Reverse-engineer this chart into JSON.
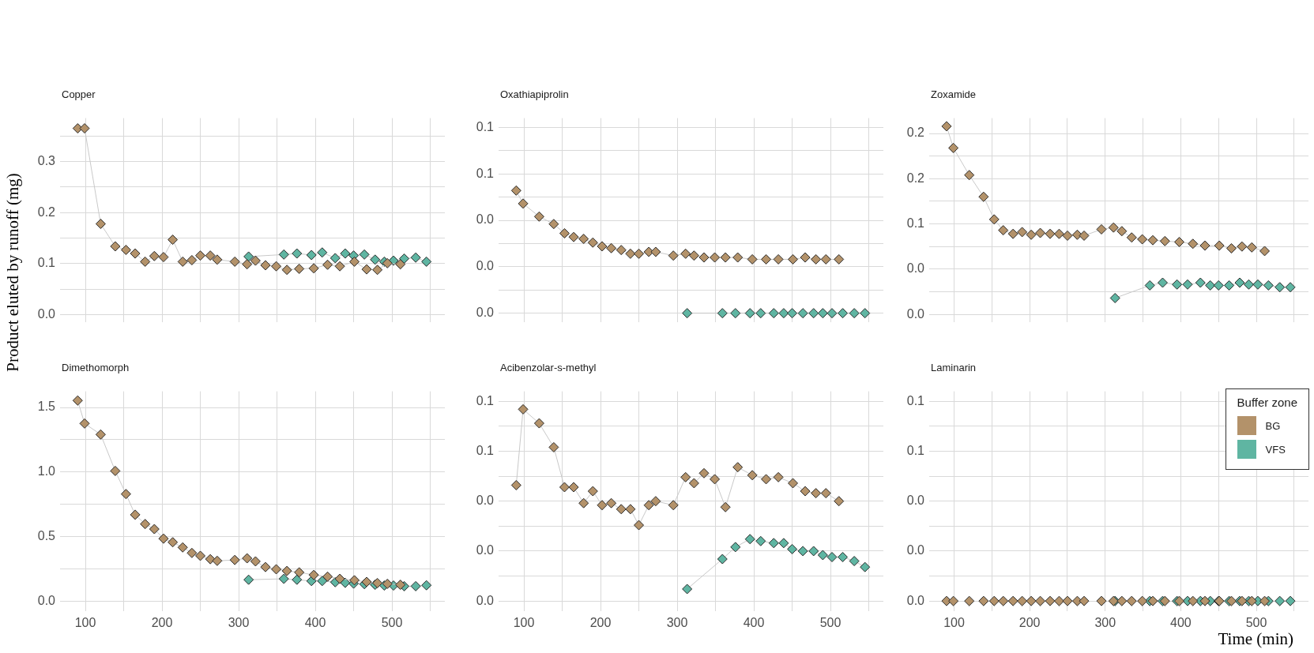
{
  "chart_data": [
    {
      "type": "line",
      "title": "Copper",
      "ylabel": "Product eluted by runoff  (mg)",
      "marker": "diamond",
      "grid": true,
      "tick_labels": "y",
      "xlim": [
        67,
        569
      ],
      "xticks": [
        100,
        {
          "value": 150,
          "label": null
        },
        200,
        {
          "value": 250,
          "label": null
        },
        300,
        {
          "value": 350,
          "label": null
        },
        400,
        {
          "value": 450,
          "label": null
        },
        500,
        {
          "value": 550,
          "label": null
        }
      ],
      "ylim": [
        -0.015,
        0.385
      ],
      "yticks": [
        {
          "value": 0,
          "label": "0.0"
        },
        {
          "value": 0.05,
          "label": null
        },
        0.1,
        {
          "value": 0.15,
          "label": null
        },
        0.2,
        {
          "value": 0.25,
          "label": null
        },
        0.3,
        {
          "value": 0.35,
          "label": null
        }
      ],
      "series": [
        {
          "color": "#b3926a",
          "x": [
            90,
            99,
            120,
            139,
            153,
            165,
            178,
            190,
            202,
            214,
            227,
            239,
            250,
            263,
            272,
            295,
            311,
            322,
            335,
            349,
            363,
            379,
            398,
            416,
            432,
            451,
            467,
            481,
            494,
            511
          ],
          "values": [
            0.365,
            0.365,
            0.178,
            0.134,
            0.127,
            0.12,
            0.104,
            0.115,
            0.113,
            0.147,
            0.104,
            0.107,
            0.116,
            0.116,
            0.108,
            0.104,
            0.099,
            0.106,
            0.097,
            0.095,
            0.088,
            0.09,
            0.091,
            0.098,
            0.095,
            0.104,
            0.089,
            0.088,
            0.101,
            0.099
          ]
        },
        {
          "color": "#5fb5a2",
          "x": [
            313,
            359,
            376,
            395,
            409,
            426,
            439,
            450,
            464,
            478,
            490,
            502,
            516,
            531,
            545
          ],
          "values": [
            0.114,
            0.118,
            0.12,
            0.117,
            0.122,
            0.111,
            0.12,
            0.116,
            0.118,
            0.108,
            0.104,
            0.106,
            0.11,
            0.112,
            0.104
          ]
        }
      ]
    },
    {
      "type": "line",
      "title": "Oxathiapiprolin",
      "marker": "diamond",
      "grid": true,
      "tick_labels": "y",
      "xlim": [
        67,
        569
      ],
      "xticks": [
        100,
        {
          "value": 150,
          "label": null
        },
        200,
        {
          "value": 250,
          "label": null
        },
        300,
        {
          "value": 350,
          "label": null
        },
        400,
        {
          "value": 450,
          "label": null
        },
        500,
        {
          "value": 550,
          "label": null
        }
      ],
      "ylim": [
        -0.005,
        0.105
      ],
      "yticks": [
        {
          "value": 0,
          "label": "0.0"
        },
        {
          "value": 0.0125,
          "label": null
        },
        {
          "value": 0.025,
          "label": "0.0"
        },
        {
          "value": 0.0375,
          "label": null
        },
        {
          "value": 0.05,
          "label": "0.0"
        },
        {
          "value": 0.0625,
          "label": null
        },
        {
          "value": 0.075,
          "label": "0.1"
        },
        {
          "value": 0.0875,
          "label": null
        },
        0.1
      ],
      "series": [
        {
          "color": "#b3926a",
          "x": [
            90,
            99,
            120,
            139,
            153,
            165,
            178,
            190,
            202,
            214,
            227,
            239,
            250,
            263,
            272,
            295,
            311,
            322,
            335,
            349,
            363,
            379,
            398,
            416,
            432,
            451,
            467,
            481,
            494,
            511
          ],
          "values": [
            0.066,
            0.059,
            0.052,
            0.048,
            0.043,
            0.041,
            0.04,
            0.038,
            0.036,
            0.035,
            0.034,
            0.032,
            0.032,
            0.033,
            0.033,
            0.031,
            0.032,
            0.031,
            0.03,
            0.03,
            0.03,
            0.03,
            0.029,
            0.029,
            0.029,
            0.029,
            0.03,
            0.029,
            0.029,
            0.029
          ]
        },
        {
          "color": "#5fb5a2",
          "x": [
            313,
            359,
            376,
            395,
            409,
            426,
            439,
            450,
            464,
            478,
            490,
            502,
            516,
            531,
            545
          ],
          "values": [
            0,
            0,
            0,
            0,
            0,
            0,
            0,
            0,
            0,
            0,
            0,
            0,
            0,
            0,
            0
          ]
        }
      ]
    },
    {
      "type": "line",
      "title": "Zoxamide",
      "marker": "diamond",
      "grid": true,
      "tick_labels": "y",
      "xlim": [
        67,
        569
      ],
      "xticks": [
        100,
        {
          "value": 150,
          "label": null
        },
        200,
        {
          "value": 250,
          "label": null
        },
        300,
        {
          "value": 350,
          "label": null
        },
        400,
        {
          "value": 450,
          "label": null
        },
        500,
        {
          "value": 550,
          "label": null
        }
      ],
      "ylim": [
        -0.009,
        0.217
      ],
      "yticks": [
        {
          "value": 0,
          "label": "0.0"
        },
        {
          "value": 0.025,
          "label": null
        },
        {
          "value": 0.05,
          "label": "0.0"
        },
        {
          "value": 0.075,
          "label": null
        },
        0.1,
        {
          "value": 0.125,
          "label": null
        },
        {
          "value": 0.15,
          "label": "0.2"
        },
        {
          "value": 0.175,
          "label": null
        },
        0.2
      ],
      "series": [
        {
          "color": "#b3926a",
          "x": [
            90,
            99,
            120,
            139,
            153,
            165,
            178,
            190,
            202,
            214,
            227,
            239,
            250,
            263,
            272,
            295,
            311,
            322,
            335,
            349,
            363,
            379,
            398,
            416,
            432,
            451,
            467,
            481,
            494,
            511
          ],
          "values": [
            0.208,
            0.184,
            0.154,
            0.13,
            0.105,
            0.093,
            0.089,
            0.091,
            0.088,
            0.09,
            0.089,
            0.089,
            0.087,
            0.088,
            0.087,
            0.094,
            0.096,
            0.092,
            0.085,
            0.083,
            0.082,
            0.081,
            0.08,
            0.078,
            0.076,
            0.076,
            0.073,
            0.075,
            0.074,
            0.07
          ]
        },
        {
          "color": "#5fb5a2",
          "x": [
            313,
            359,
            376,
            395,
            409,
            426,
            439,
            450,
            464,
            478,
            490,
            502,
            516,
            531,
            545
          ],
          "values": [
            0.018,
            0.032,
            0.035,
            0.033,
            0.033,
            0.035,
            0.032,
            0.032,
            0.032,
            0.035,
            0.033,
            0.033,
            0.032,
            0.03,
            0.03
          ]
        }
      ]
    },
    {
      "type": "line",
      "title": "Dimethomorph",
      "marker": "diamond",
      "grid": true,
      "xlim": [
        67,
        569
      ],
      "xticks": [
        100,
        {
          "value": 150,
          "label": null
        },
        200,
        {
          "value": 250,
          "label": null
        },
        300,
        {
          "value": 350,
          "label": null
        },
        400,
        {
          "value": 450,
          "label": null
        },
        500,
        {
          "value": 550,
          "label": null
        }
      ],
      "ylim": [
        -0.075,
        1.625
      ],
      "yticks": [
        {
          "value": 0,
          "label": "0.0"
        },
        {
          "value": 0.25,
          "label": null
        },
        0.5,
        {
          "value": 0.75,
          "label": null
        },
        {
          "value": 1,
          "label": "1.0"
        },
        {
          "value": 1.25,
          "label": null
        },
        1.5
      ],
      "series": [
        {
          "color": "#b3926a",
          "x": [
            90,
            99,
            120,
            139,
            153,
            165,
            178,
            190,
            202,
            214,
            227,
            239,
            250,
            263,
            272,
            295,
            311,
            322,
            335,
            349,
            363,
            379,
            398,
            416,
            432,
            451,
            467,
            481,
            494,
            511
          ],
          "values": [
            1.554,
            1.376,
            1.291,
            1.009,
            0.83,
            0.67,
            0.598,
            0.559,
            0.485,
            0.457,
            0.417,
            0.374,
            0.352,
            0.326,
            0.313,
            0.32,
            0.333,
            0.309,
            0.265,
            0.248,
            0.235,
            0.224,
            0.204,
            0.191,
            0.174,
            0.163,
            0.15,
            0.141,
            0.135,
            0.128
          ]
        },
        {
          "color": "#5fb5a2",
          "x": [
            313,
            359,
            376,
            395,
            409,
            426,
            439,
            450,
            464,
            478,
            490,
            502,
            516,
            531,
            545
          ],
          "values": [
            0.167,
            0.174,
            0.167,
            0.157,
            0.157,
            0.148,
            0.143,
            0.137,
            0.133,
            0.128,
            0.122,
            0.122,
            0.117,
            0.117,
            0.124
          ]
        }
      ]
    },
    {
      "type": "line",
      "title": "Acibenzolar-s-methyl",
      "marker": "diamond",
      "grid": true,
      "xlim": [
        67,
        569
      ],
      "xticks": [
        100,
        {
          "value": 150,
          "label": null
        },
        200,
        {
          "value": 250,
          "label": null
        },
        300,
        {
          "value": 350,
          "label": null
        },
        400,
        {
          "value": 450,
          "label": null
        },
        500,
        {
          "value": 550,
          "label": null
        }
      ],
      "ylim": [
        -0.005,
        0.105
      ],
      "yticks": [
        {
          "value": 0,
          "label": "0.0"
        },
        {
          "value": 0.0125,
          "label": null
        },
        {
          "value": 0.025,
          "label": "0.0"
        },
        {
          "value": 0.0375,
          "label": null
        },
        {
          "value": 0.05,
          "label": "0.0"
        },
        {
          "value": 0.0625,
          "label": null
        },
        {
          "value": 0.075,
          "label": "0.1"
        },
        {
          "value": 0.0875,
          "label": null
        },
        0.1
      ],
      "series": [
        {
          "color": "#b3926a",
          "x": [
            90,
            99,
            120,
            139,
            153,
            165,
            178,
            190,
            202,
            214,
            227,
            239,
            250,
            263,
            272,
            295,
            311,
            322,
            335,
            349,
            363,
            379,
            398,
            416,
            432,
            451,
            467,
            481,
            494,
            511
          ],
          "values": [
            0.058,
            0.096,
            0.089,
            0.077,
            0.057,
            0.057,
            0.049,
            0.055,
            0.048,
            0.049,
            0.046,
            0.046,
            0.038,
            0.048,
            0.05,
            0.048,
            0.062,
            0.059,
            0.064,
            0.061,
            0.047,
            0.067,
            0.063,
            0.061,
            0.062,
            0.059,
            0.055,
            0.054,
            0.054,
            0.05
          ]
        },
        {
          "color": "#5fb5a2",
          "x": [
            313,
            359,
            376,
            395,
            409,
            426,
            439,
            450,
            464,
            478,
            490,
            502,
            516,
            531,
            545
          ],
          "values": [
            0.006,
            0.021,
            0.027,
            0.031,
            0.03,
            0.029,
            0.029,
            0.026,
            0.025,
            0.025,
            0.023,
            0.022,
            0.022,
            0.02,
            0.017
          ]
        }
      ]
    },
    {
      "type": "line",
      "title": "Laminarin",
      "xlabel": "Time (min)",
      "legend": "top right",
      "legend_title": "Buffer zone",
      "marker": "diamond",
      "grid": true,
      "xlim": [
        67,
        569
      ],
      "xticks": [
        100,
        {
          "value": 150,
          "label": null
        },
        200,
        {
          "value": 250,
          "label": null
        },
        300,
        {
          "value": 350,
          "label": null
        },
        400,
        {
          "value": 450,
          "label": null
        },
        500,
        {
          "value": 550,
          "label": null
        }
      ],
      "ylim": [
        -0.005,
        0.105
      ],
      "yticks": [
        {
          "value": 0,
          "label": "0.0"
        },
        {
          "value": 0.0125,
          "label": null
        },
        {
          "value": 0.025,
          "label": "0.0"
        },
        {
          "value": 0.0375,
          "label": null
        },
        {
          "value": 0.05,
          "label": "0.0"
        },
        {
          "value": 0.0625,
          "label": null
        },
        {
          "value": 0.075,
          "label": "0.1"
        },
        {
          "value": 0.0875,
          "label": null
        },
        0.1
      ],
      "series": [
        {
          "name": "BG",
          "type": "scatter",
          "color": "#b3926a",
          "x": [
            90,
            99,
            120,
            139,
            153,
            165,
            178,
            190,
            202,
            214,
            227,
            239,
            250,
            263,
            272,
            295,
            311,
            322,
            335,
            349,
            363,
            379,
            398,
            416,
            432,
            451,
            467,
            481,
            494,
            511
          ],
          "values": [
            0,
            0,
            0,
            0,
            0,
            0,
            0,
            0,
            0,
            0,
            0,
            0,
            0,
            0,
            0,
            0,
            0,
            0,
            0,
            0,
            0,
            0,
            0,
            0,
            0,
            0,
            0,
            0,
            0,
            0
          ]
        },
        {
          "name": "VFS",
          "type": "scatter",
          "color": "#5fb5a2",
          "x": [
            313,
            359,
            376,
            395,
            409,
            426,
            439,
            450,
            464,
            478,
            490,
            502,
            516,
            531,
            545
          ],
          "values": [
            0,
            0,
            0,
            0,
            0,
            0,
            0,
            0,
            0,
            0,
            0,
            0,
            0,
            0,
            0
          ]
        }
      ]
    }
  ]
}
